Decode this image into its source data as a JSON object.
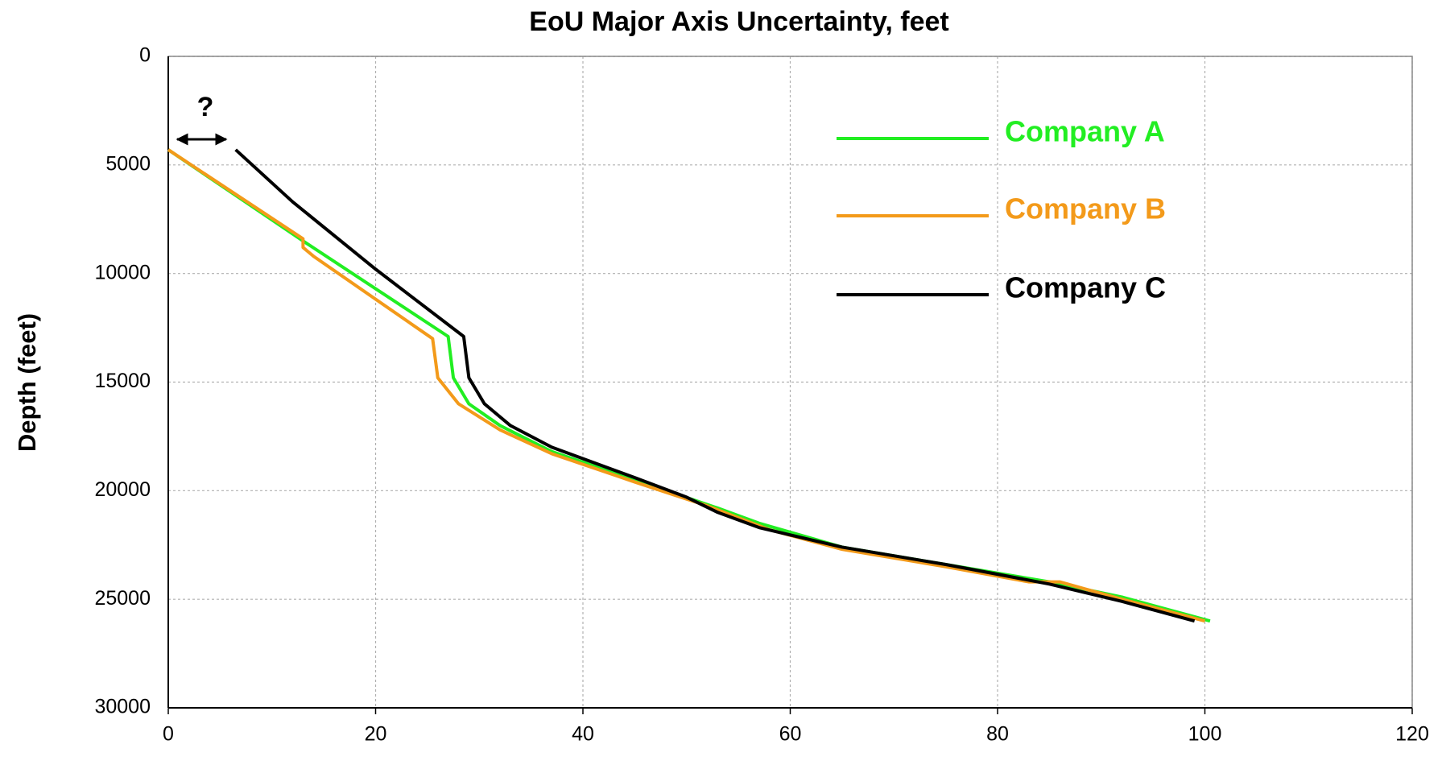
{
  "chart_data": {
    "type": "line",
    "title": "EoU Major Axis Uncertainty, feet",
    "y_label": "Depth (feet)",
    "annotation": "?",
    "xlim": [
      0,
      120
    ],
    "xticks": [
      0,
      20,
      40,
      60,
      80,
      100,
      120
    ],
    "ylim": [
      0,
      30000
    ],
    "yticks": [
      0,
      5000,
      10000,
      15000,
      20000,
      25000,
      30000
    ],
    "y_inverted": true,
    "grid": true,
    "legend": "upper right",
    "series": [
      {
        "name": "Company A",
        "color": "#22ee22",
        "x": [
          0,
          13,
          27,
          27.5,
          29,
          32,
          37,
          45,
          53,
          57,
          65,
          75,
          85,
          92,
          100.5
        ],
        "values": [
          4300,
          8500,
          12900,
          14800,
          16000,
          17000,
          18200,
          19500,
          20800,
          21500,
          22600,
          23400,
          24200,
          24900,
          26000
        ]
      },
      {
        "name": "Company B",
        "color": "#f39a1a",
        "x": [
          0,
          13,
          13,
          14,
          25.5,
          26,
          28,
          32,
          37,
          45,
          52,
          58,
          65,
          75,
          83,
          86,
          92,
          100
        ],
        "values": [
          4300,
          8400,
          8800,
          9200,
          13000,
          14800,
          16000,
          17200,
          18300,
          19600,
          20700,
          21800,
          22700,
          23500,
          24200,
          24200,
          25000,
          26000
        ]
      },
      {
        "name": "Company C",
        "color": "#000000",
        "x": [
          6.5,
          12,
          20,
          28.5,
          29,
          30.5,
          33,
          37,
          45,
          50,
          53,
          57,
          65,
          75,
          85,
          92,
          99
        ],
        "values": [
          4300,
          6700,
          9800,
          12900,
          14800,
          16000,
          17000,
          18000,
          19400,
          20300,
          21000,
          21700,
          22600,
          23400,
          24300,
          25100,
          26000
        ]
      }
    ]
  }
}
